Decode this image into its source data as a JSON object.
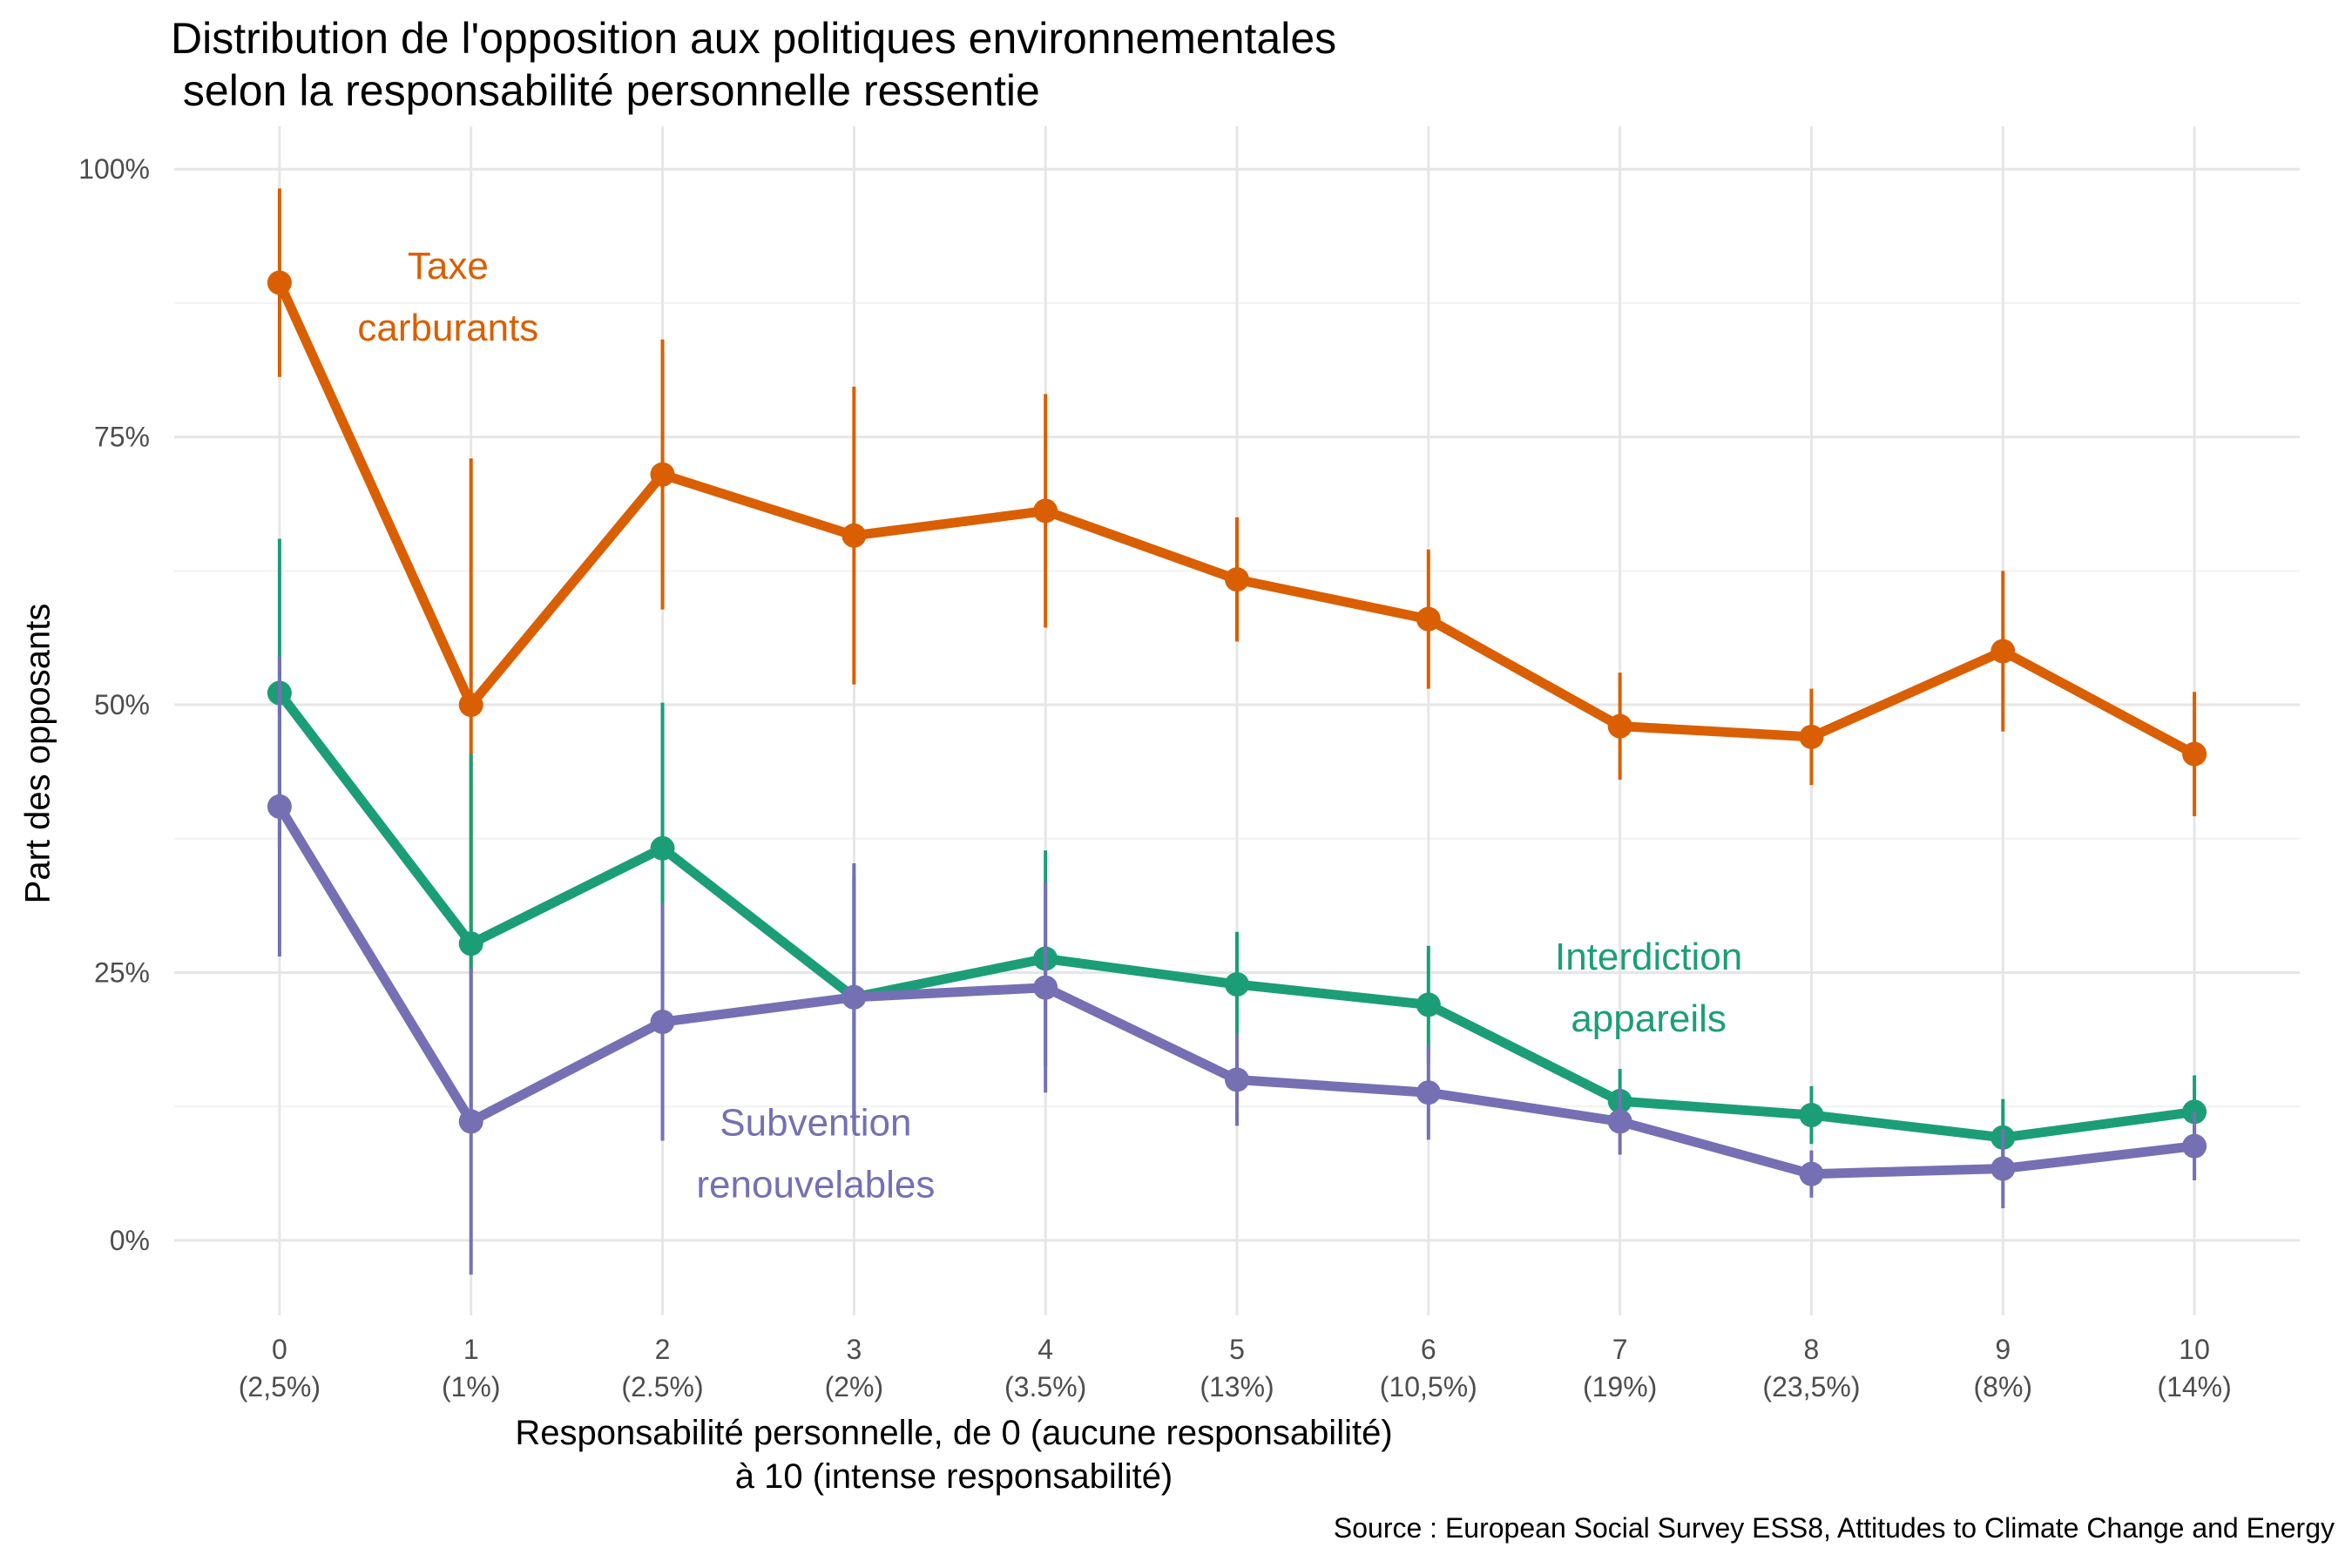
{
  "chart_data": {
    "type": "line",
    "title_line1": "Distribution de l'opposition aux politiques environnementales",
    "title_line2": " selon la responsabilité personnelle ressentie",
    "ylabel": "Part des opposants",
    "xlabel_line1": "Responsabilité personnelle, de 0 (aucune responsabilité)",
    "xlabel_line2": "à 10 (intense responsabilité)",
    "caption": "Source : European Social Survey ESS8, Attitudes to Climate Change and Energy",
    "x": [
      0,
      1,
      2,
      3,
      4,
      5,
      6,
      7,
      8,
      9,
      10
    ],
    "x_ticks": [
      "0",
      "1",
      "2",
      "3",
      "4",
      "5",
      "6",
      "7",
      "8",
      "9",
      "10"
    ],
    "x_sublabels": [
      "(2,5%)",
      "(1%)",
      "(2.5%)",
      "(2%)",
      "(3.5%)",
      "(13%)",
      "(10,5%)",
      "(19%)",
      "(23,5%)",
      "(8%)",
      "(14%)"
    ],
    "y_ticks": [
      "0%",
      "25%",
      "50%",
      "75%",
      "100%"
    ],
    "ylim": [
      -0.07,
      1.04
    ],
    "xlim": [
      -0.55,
      10.55
    ],
    "grid": true,
    "series": [
      {
        "name_lines": [
          "Taxe",
          "carburants"
        ],
        "label_x": 0.88,
        "label_y": 0.91,
        "color": "#D95F02",
        "values": [
          0.894,
          0.5,
          0.715,
          0.658,
          0.681,
          0.617,
          0.58,
          0.48,
          0.47,
          0.55,
          0.454
        ],
        "lower": [
          0.806,
          0.25,
          0.589,
          0.519,
          0.572,
          0.559,
          0.515,
          0.43,
          0.425,
          0.475,
          0.396
        ],
        "upper": [
          0.982,
          0.73,
          0.841,
          0.797,
          0.79,
          0.675,
          0.645,
          0.53,
          0.515,
          0.625,
          0.512
        ]
      },
      {
        "name_lines": [
          "Interdiction",
          "appareils"
        ],
        "label_x": 7.15,
        "label_y": 0.265,
        "color": "#1B9E77",
        "values": [
          0.511,
          0.277,
          0.366,
          0.227,
          0.263,
          0.239,
          0.22,
          0.13,
          0.117,
          0.096,
          0.12
        ],
        "lower": [
          0.366,
          0.1,
          0.23,
          0.114,
          0.162,
          0.19,
          0.165,
          0.1,
          0.09,
          0.06,
          0.086
        ],
        "upper": [
          0.655,
          0.454,
          0.502,
          0.34,
          0.364,
          0.288,
          0.275,
          0.16,
          0.144,
          0.132,
          0.154
        ]
      },
      {
        "name_lines": [
          "Subvention",
          "renouvelables"
        ],
        "label_x": 2.8,
        "label_y": 0.11,
        "color": "#7570B3",
        "values": [
          0.405,
          0.111,
          0.204,
          0.227,
          0.236,
          0.15,
          0.138,
          0.111,
          0.062,
          0.067,
          0.088
        ],
        "lower": [
          0.265,
          -0.032,
          0.093,
          0.102,
          0.138,
          0.107,
          0.094,
          0.08,
          0.04,
          0.03,
          0.056
        ],
        "upper": [
          0.545,
          0.254,
          0.315,
          0.352,
          0.334,
          0.193,
          0.182,
          0.142,
          0.084,
          0.104,
          0.12
        ]
      }
    ]
  }
}
